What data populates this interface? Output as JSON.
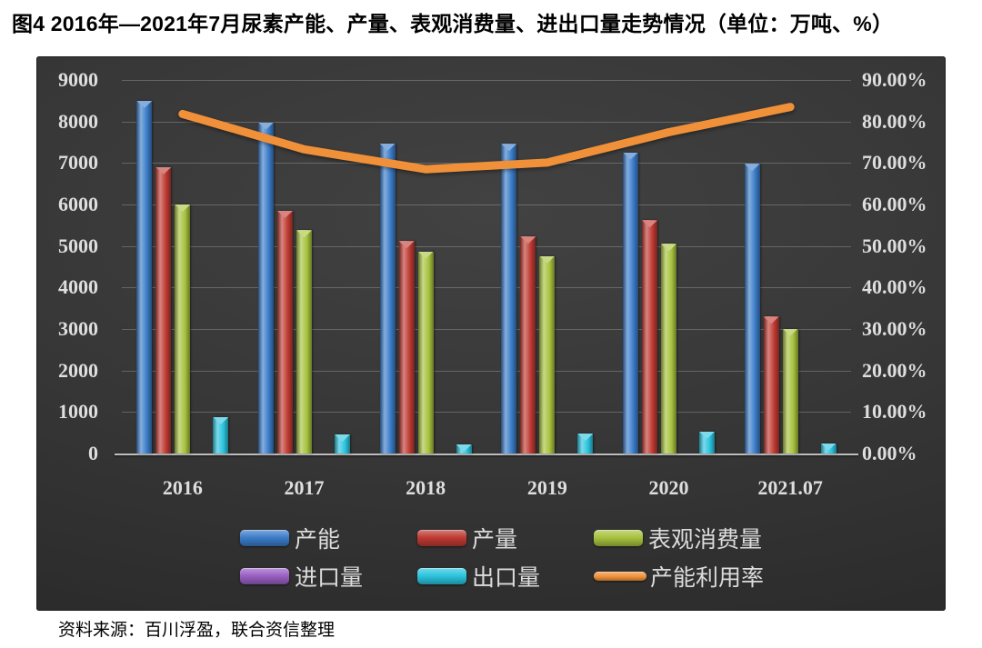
{
  "page": {
    "title": "图4 2016年—2021年7月尿素产能、产量、表观消费量、进出口量走势情况（单位：万吨、%）",
    "source": "资料来源：百川浮盈，联合资信整理"
  },
  "chart_data": {
    "type": "bar",
    "subtype": "grouped-bars-with-right-axis-line",
    "title": "图4 2016年—2021年7月尿素产能、产量、表观消费量、进出口量走势情况",
    "unit_label": "单位：万吨、%",
    "categories": [
      "2016",
      "2017",
      "2018",
      "2019",
      "2020",
      "2021.07"
    ],
    "series": [
      {
        "name": "产能",
        "kind": "bar",
        "axis": "left",
        "color": "#3B7CC8",
        "values": [
          8500,
          7980,
          7470,
          7460,
          7260,
          6980
        ]
      },
      {
        "name": "产量",
        "kind": "bar",
        "axis": "left",
        "color": "#BE3A32",
        "values": [
          6900,
          5850,
          5120,
          5230,
          5620,
          3300
        ]
      },
      {
        "name": "表观消费量",
        "kind": "bar",
        "axis": "left",
        "color": "#A7C23D",
        "values": [
          6000,
          5380,
          4870,
          4760,
          5050,
          3010
        ]
      },
      {
        "name": "进口量",
        "kind": "bar",
        "axis": "left",
        "color": "#9A5FC4",
        "values": [
          0,
          0,
          0,
          0,
          0,
          0
        ]
      },
      {
        "name": "出口量",
        "kind": "bar",
        "axis": "left",
        "color": "#2BC4DE",
        "values": [
          880,
          460,
          220,
          480,
          530,
          250
        ]
      },
      {
        "name": "产能利用率",
        "kind": "line",
        "axis": "right",
        "color": "#F0913A",
        "values": [
          81.8,
          73.3,
          68.5,
          70.1,
          77.4,
          83.5
        ]
      }
    ],
    "left_axis": {
      "min": 0,
      "max": 9000,
      "step": 1000,
      "tick_labels": [
        "0",
        "1000",
        "2000",
        "3000",
        "4000",
        "5000",
        "6000",
        "7000",
        "8000",
        "9000"
      ]
    },
    "right_axis": {
      "min": 0,
      "max": 90,
      "step": 10,
      "tick_labels": [
        "0.00%",
        "10.00%",
        "20.00%",
        "30.00%",
        "40.00%",
        "50.00%",
        "60.00%",
        "70.00%",
        "80.00%",
        "90.00%"
      ]
    },
    "grid": true,
    "legend_position": "bottom"
  }
}
